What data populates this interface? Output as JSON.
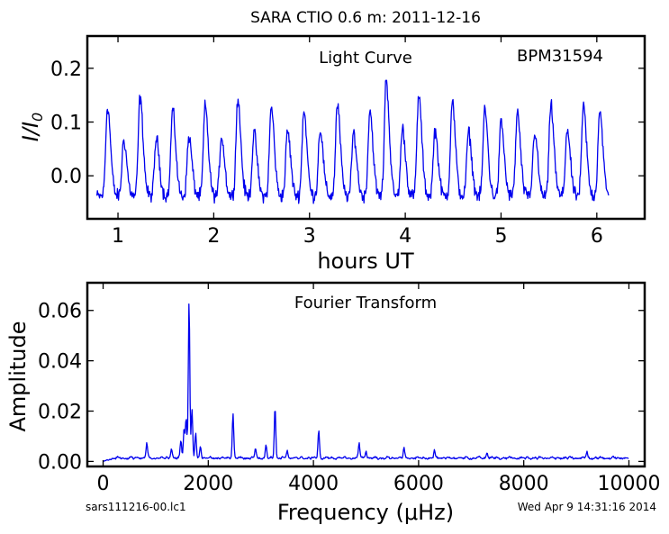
{
  "figure": {
    "title": "SARA CTIO 0.6 m:  2011-12-16",
    "footer_left": "sars111216-00.lc1",
    "footer_right": "Wed Apr  9 14:31:16 2014",
    "line_color": "#0000ee"
  },
  "chart_data": [
    {
      "type": "line",
      "label": "Light Curve",
      "annotation": "BPM31594",
      "xlabel": "hours UT",
      "ylabel": "I/I0",
      "xlim": [
        0.68,
        6.5
      ],
      "ylim": [
        -0.08,
        0.26
      ],
      "xticks": [
        1,
        2,
        3,
        4,
        5,
        6
      ],
      "yticks": [
        0.0,
        0.1,
        0.2
      ],
      "ytick_labels": [
        "0.0",
        "0.1",
        "0.2"
      ],
      "x_start": 0.78,
      "x_end": 6.13,
      "pulse_period_hours": 0.1735,
      "peaks": [
        {
          "x": 0.89,
          "y": 0.127
        },
        {
          "x": 1.06,
          "y": 0.065
        },
        {
          "x": 1.23,
          "y": 0.143
        },
        {
          "x": 1.4,
          "y": 0.068
        },
        {
          "x": 1.57,
          "y": 0.12
        },
        {
          "x": 1.74,
          "y": 0.07
        },
        {
          "x": 1.91,
          "y": 0.128
        },
        {
          "x": 2.08,
          "y": 0.072
        },
        {
          "x": 2.25,
          "y": 0.14
        },
        {
          "x": 2.42,
          "y": 0.078
        },
        {
          "x": 2.6,
          "y": 0.126
        },
        {
          "x": 2.77,
          "y": 0.082
        },
        {
          "x": 2.94,
          "y": 0.12
        },
        {
          "x": 3.11,
          "y": 0.085
        },
        {
          "x": 3.29,
          "y": 0.13
        },
        {
          "x": 3.46,
          "y": 0.078
        },
        {
          "x": 3.63,
          "y": 0.12
        },
        {
          "x": 3.8,
          "y": 0.178
        },
        {
          "x": 3.97,
          "y": 0.086
        },
        {
          "x": 4.14,
          "y": 0.148
        },
        {
          "x": 4.31,
          "y": 0.082
        },
        {
          "x": 4.49,
          "y": 0.138
        },
        {
          "x": 4.66,
          "y": 0.08
        },
        {
          "x": 4.83,
          "y": 0.122
        },
        {
          "x": 5.0,
          "y": 0.098
        },
        {
          "x": 5.17,
          "y": 0.116
        },
        {
          "x": 5.35,
          "y": 0.08
        },
        {
          "x": 5.52,
          "y": 0.13
        },
        {
          "x": 5.69,
          "y": 0.085
        },
        {
          "x": 5.86,
          "y": 0.128
        },
        {
          "x": 6.03,
          "y": 0.122
        }
      ]
    },
    {
      "type": "line",
      "label": "Fourier Transform",
      "xlabel": "Frequency (μHz)",
      "ylabel": "Amplitude",
      "xlim": [
        -300,
        10300
      ],
      "ylim": [
        -0.002,
        0.071
      ],
      "xticks": [
        0,
        2000,
        4000,
        6000,
        8000,
        10000
      ],
      "yticks": [
        0.0,
        0.02,
        0.04,
        0.06
      ],
      "ytick_labels": [
        "0.00",
        "0.02",
        "0.04",
        "0.06"
      ],
      "x_range": [
        0,
        10000
      ],
      "noise_level": 0.0015,
      "peaks": [
        {
          "x": 830,
          "y": 0.006
        },
        {
          "x": 1300,
          "y": 0.004
        },
        {
          "x": 1480,
          "y": 0.007
        },
        {
          "x": 1540,
          "y": 0.012
        },
        {
          "x": 1580,
          "y": 0.016
        },
        {
          "x": 1635,
          "y": 0.063
        },
        {
          "x": 1690,
          "y": 0.019
        },
        {
          "x": 1760,
          "y": 0.01
        },
        {
          "x": 1850,
          "y": 0.005
        },
        {
          "x": 2470,
          "y": 0.0175
        },
        {
          "x": 2900,
          "y": 0.004
        },
        {
          "x": 3100,
          "y": 0.005
        },
        {
          "x": 3270,
          "y": 0.0205
        },
        {
          "x": 3500,
          "y": 0.003
        },
        {
          "x": 4100,
          "y": 0.011
        },
        {
          "x": 4870,
          "y": 0.006
        },
        {
          "x": 5000,
          "y": 0.003
        },
        {
          "x": 5720,
          "y": 0.004
        },
        {
          "x": 6300,
          "y": 0.003
        },
        {
          "x": 7300,
          "y": 0.0025
        },
        {
          "x": 9200,
          "y": 0.0025
        }
      ]
    }
  ]
}
